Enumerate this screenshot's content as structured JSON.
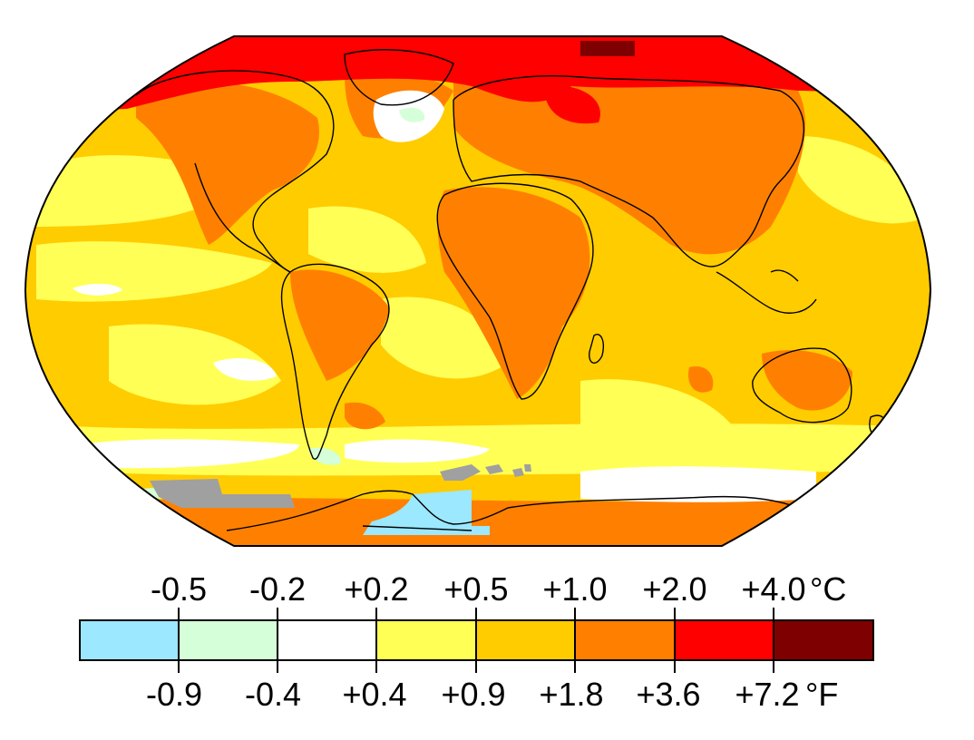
{
  "map": {
    "projection": "Robinson",
    "colors": {
      "bin_lt_m05": "#9be8ff",
      "bin_m05_m02": "#d5ffd8",
      "bin_m02_p02": "#ffffff",
      "bin_p02_p05": "#ffff55",
      "bin_p05_p10": "#ffcc00",
      "bin_p10_p20": "#ff8000",
      "bin_p20_p40": "#ff0000",
      "bin_gt_p40": "#7f0000",
      "no_data": "#a0a0a0",
      "coastline": "#000000"
    }
  },
  "legend": {
    "celsius_unit": "°C",
    "fahrenheit_unit": "°F",
    "celsius_ticks": [
      "-0.5",
      "-0.2",
      "+0.2",
      "+0.5",
      "+1.0",
      "+2.0",
      "+4.0"
    ],
    "fahrenheit_ticks": [
      "-0.9",
      "-0.4",
      "+0.4",
      "+0.9",
      "+1.8",
      "+3.6",
      "+7.2"
    ],
    "bins": [
      {
        "color": "#9be8ff"
      },
      {
        "color": "#d5ffd8"
      },
      {
        "color": "#ffffff"
      },
      {
        "color": "#ffff55"
      },
      {
        "color": "#ffcc00"
      },
      {
        "color": "#ff8000"
      },
      {
        "color": "#ff0000"
      },
      {
        "color": "#7f0000"
      }
    ]
  }
}
